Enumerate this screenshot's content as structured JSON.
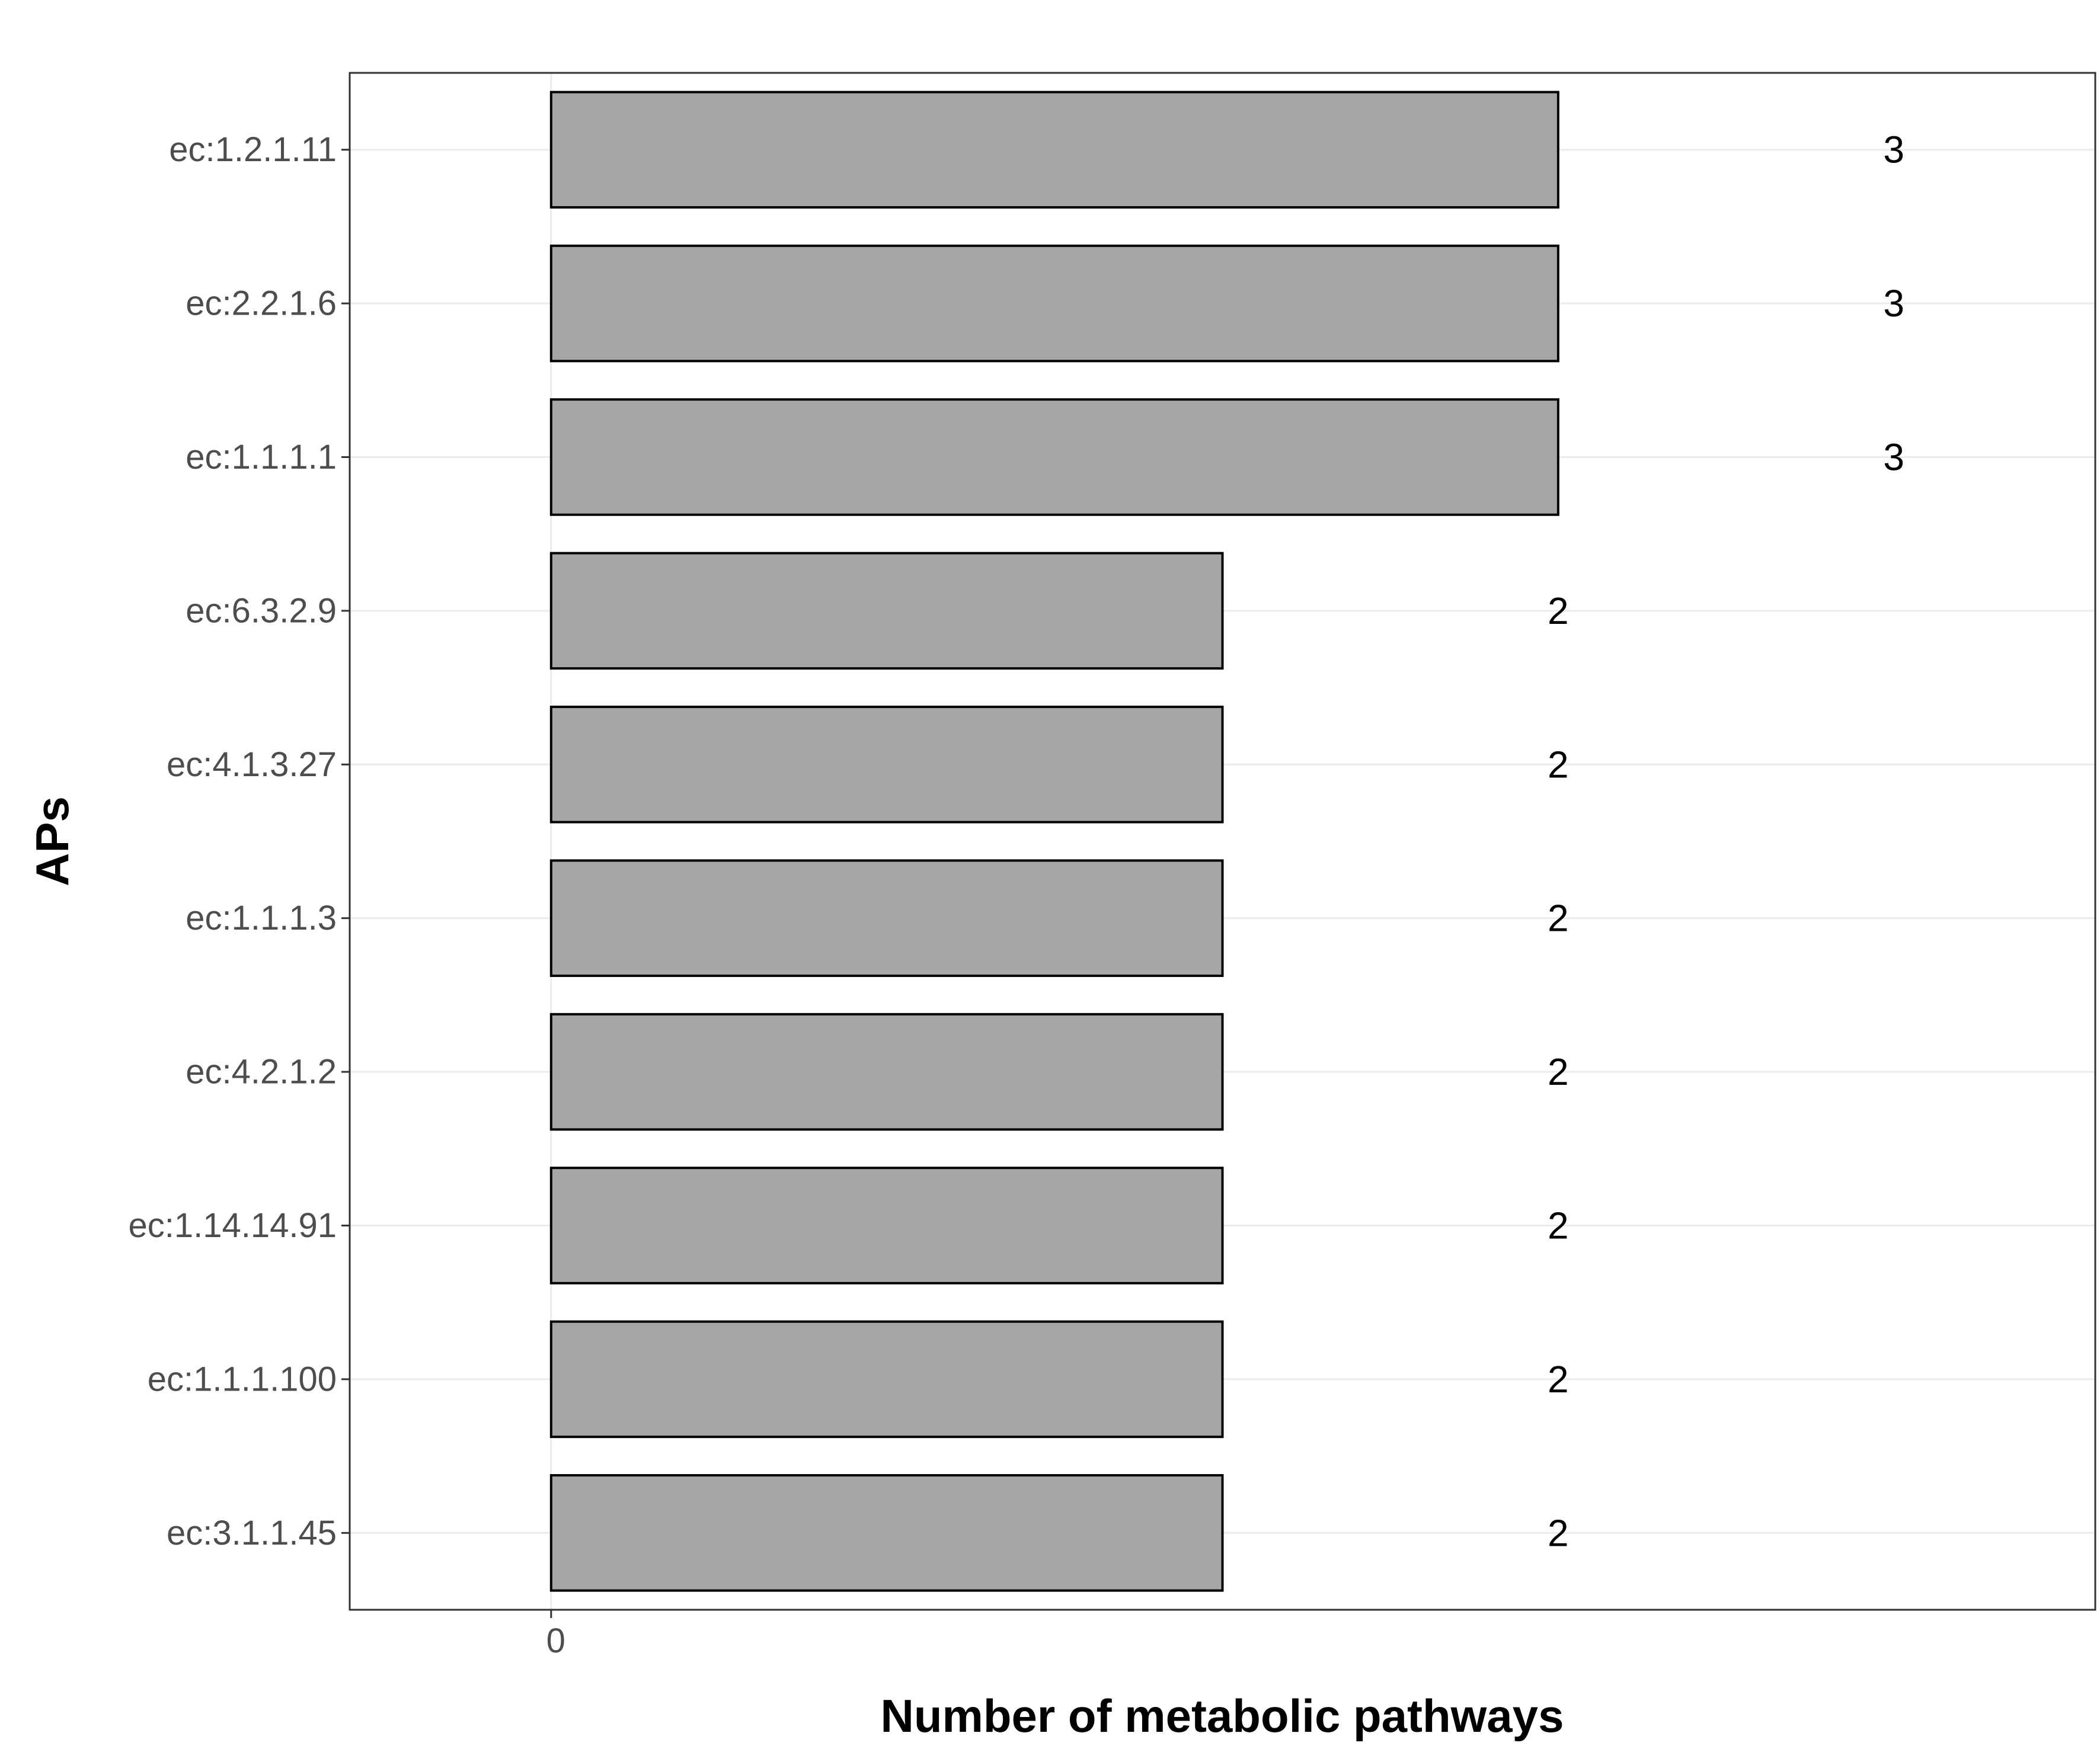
{
  "chart_data": {
    "type": "bar",
    "orientation": "horizontal",
    "categories": [
      "ec:1.2.1.11",
      "ec:2.2.1.6",
      "ec:1.1.1.1",
      "ec:6.3.2.9",
      "ec:4.1.3.27",
      "ec:1.1.1.3",
      "ec:4.2.1.2",
      "ec:1.14.14.91",
      "ec:1.1.1.100",
      "ec:3.1.1.45"
    ],
    "values": [
      3,
      3,
      3,
      2,
      2,
      2,
      2,
      2,
      2,
      2
    ],
    "data_labels": [
      "3",
      "3",
      "3",
      "2",
      "2",
      "2",
      "2",
      "2",
      "2",
      "2"
    ],
    "data_label_x": [
      4,
      4,
      4,
      3,
      3,
      3,
      3,
      3,
      3,
      3
    ],
    "xlabel": "Number of metabolic pathways",
    "ylabel": "APs",
    "xlim": [
      -0.6,
      4.6
    ],
    "xticks": [
      0
    ],
    "xtick_labels": [
      "0"
    ],
    "grid": true,
    "bar_color": "#a6a6a6",
    "bar_edge_color": "#000000",
    "panel_border_color": "#333333",
    "grid_color": "#ebebeb"
  }
}
